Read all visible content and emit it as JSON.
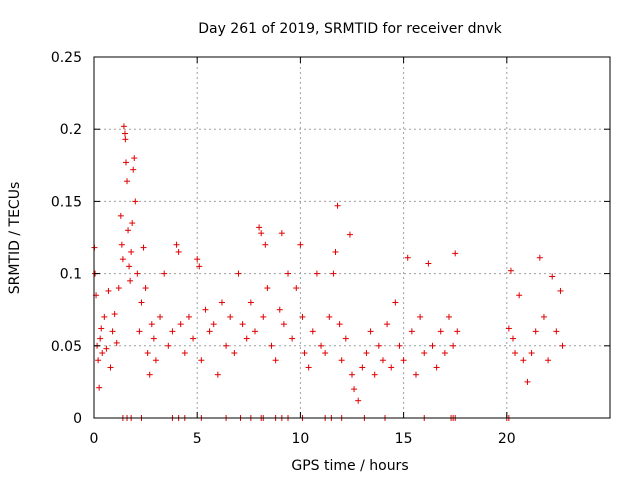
{
  "chart_data": {
    "type": "scatter",
    "title": "Day 261 of 2019, SRMTID for receiver dnvk",
    "xlabel": "GPS time / hours",
    "ylabel": "SRMTID / TECUs",
    "xlim": [
      0,
      25
    ],
    "ylim": [
      0,
      0.25
    ],
    "xticks": [
      0,
      5,
      10,
      15,
      20
    ],
    "xtick_labels": [
      "0",
      "5",
      "10",
      "15",
      "20"
    ],
    "yticks": [
      0,
      0.05,
      0.1,
      0.15,
      0.2,
      0.25
    ],
    "ytick_labels": [
      "0",
      "0.05",
      "0.1",
      "0.15",
      "0.2",
      "0.25"
    ],
    "grid": true,
    "marker": "+",
    "color": "#e00000",
    "series": [
      {
        "name": "SRMTID",
        "points": [
          [
            0.02,
            0.118
          ],
          [
            0.05,
            0.1
          ],
          [
            0.1,
            0.085
          ],
          [
            0.15,
            0.05
          ],
          [
            0.2,
            0.04
          ],
          [
            0.25,
            0.021
          ],
          [
            0.3,
            0.055
          ],
          [
            0.35,
            0.062
          ],
          [
            0.4,
            0.045
          ],
          [
            0.5,
            0.07
          ],
          [
            0.6,
            0.048
          ],
          [
            0.7,
            0.088
          ],
          [
            0.8,
            0.035
          ],
          [
            0.9,
            0.06
          ],
          [
            1.0,
            0.072
          ],
          [
            1.1,
            0.052
          ],
          [
            1.2,
            0.09
          ],
          [
            1.3,
            0.14
          ],
          [
            1.35,
            0.12
          ],
          [
            1.4,
            0.11
          ],
          [
            1.45,
            0.202
          ],
          [
            1.5,
            0.197
          ],
          [
            1.52,
            0.193
          ],
          [
            1.55,
            0.177
          ],
          [
            1.6,
            0.164
          ],
          [
            1.65,
            0.13
          ],
          [
            1.7,
            0.105
          ],
          [
            1.75,
            0.095
          ],
          [
            1.8,
            0.115
          ],
          [
            1.85,
            0.135
          ],
          [
            1.9,
            0.172
          ],
          [
            1.95,
            0.18
          ],
          [
            2.0,
            0.15
          ],
          [
            2.1,
            0.1
          ],
          [
            2.2,
            0.06
          ],
          [
            2.3,
            0.08
          ],
          [
            2.4,
            0.118
          ],
          [
            2.5,
            0.09
          ],
          [
            2.6,
            0.045
          ],
          [
            2.7,
            0.03
          ],
          [
            2.8,
            0.065
          ],
          [
            2.9,
            0.055
          ],
          [
            3.0,
            0.04
          ],
          [
            3.2,
            0.07
          ],
          [
            3.4,
            0.1
          ],
          [
            3.6,
            0.05
          ],
          [
            3.8,
            0.06
          ],
          [
            4.0,
            0.12
          ],
          [
            4.1,
            0.115
          ],
          [
            4.2,
            0.065
          ],
          [
            4.4,
            0.045
          ],
          [
            4.6,
            0.07
          ],
          [
            4.8,
            0.055
          ],
          [
            5.0,
            0.11
          ],
          [
            5.1,
            0.105
          ],
          [
            5.2,
            0.04
          ],
          [
            5.4,
            0.075
          ],
          [
            5.6,
            0.06
          ],
          [
            5.8,
            0.065
          ],
          [
            6.0,
            0.03
          ],
          [
            6.2,
            0.08
          ],
          [
            6.4,
            0.05
          ],
          [
            6.6,
            0.07
          ],
          [
            6.8,
            0.045
          ],
          [
            7.0,
            0.1
          ],
          [
            7.2,
            0.065
          ],
          [
            7.4,
            0.055
          ],
          [
            7.6,
            0.08
          ],
          [
            7.8,
            0.06
          ],
          [
            8.0,
            0.132
          ],
          [
            8.1,
            0.128
          ],
          [
            8.2,
            0.07
          ],
          [
            8.3,
            0.12
          ],
          [
            8.4,
            0.09
          ],
          [
            8.6,
            0.05
          ],
          [
            8.8,
            0.04
          ],
          [
            9.0,
            0.075
          ],
          [
            9.1,
            0.128
          ],
          [
            9.2,
            0.065
          ],
          [
            9.4,
            0.1
          ],
          [
            9.6,
            0.055
          ],
          [
            9.8,
            0.09
          ],
          [
            10.0,
            0.12
          ],
          [
            10.1,
            0.07
          ],
          [
            10.2,
            0.045
          ],
          [
            10.4,
            0.035
          ],
          [
            10.6,
            0.06
          ],
          [
            10.8,
            0.1
          ],
          [
            11.0,
            0.05
          ],
          [
            11.2,
            0.045
          ],
          [
            11.4,
            0.07
          ],
          [
            11.6,
            0.1
          ],
          [
            11.7,
            0.115
          ],
          [
            11.8,
            0.147
          ],
          [
            11.9,
            0.065
          ],
          [
            12.0,
            0.04
          ],
          [
            12.2,
            0.055
          ],
          [
            12.4,
            0.127
          ],
          [
            12.5,
            0.03
          ],
          [
            12.6,
            0.02
          ],
          [
            12.8,
            0.012
          ],
          [
            13.0,
            0.035
          ],
          [
            13.2,
            0.045
          ],
          [
            13.4,
            0.06
          ],
          [
            13.6,
            0.03
          ],
          [
            13.8,
            0.05
          ],
          [
            14.0,
            0.04
          ],
          [
            14.2,
            0.065
          ],
          [
            14.4,
            0.035
          ],
          [
            14.6,
            0.08
          ],
          [
            14.8,
            0.05
          ],
          [
            15.0,
            0.04
          ],
          [
            15.2,
            0.111
          ],
          [
            15.4,
            0.06
          ],
          [
            15.6,
            0.03
          ],
          [
            15.8,
            0.07
          ],
          [
            16.0,
            0.045
          ],
          [
            16.2,
            0.107
          ],
          [
            16.4,
            0.05
          ],
          [
            16.6,
            0.035
          ],
          [
            16.8,
            0.06
          ],
          [
            17.0,
            0.045
          ],
          [
            17.2,
            0.07
          ],
          [
            17.4,
            0.05
          ],
          [
            17.5,
            0.114
          ],
          [
            17.6,
            0.06
          ],
          [
            20.1,
            0.062
          ],
          [
            20.2,
            0.102
          ],
          [
            20.3,
            0.055
          ],
          [
            20.4,
            0.045
          ],
          [
            20.6,
            0.085
          ],
          [
            20.8,
            0.04
          ],
          [
            21.0,
            0.025
          ],
          [
            21.2,
            0.045
          ],
          [
            21.4,
            0.06
          ],
          [
            21.6,
            0.111
          ],
          [
            21.8,
            0.07
          ],
          [
            22.0,
            0.04
          ],
          [
            22.2,
            0.098
          ],
          [
            22.4,
            0.06
          ],
          [
            22.6,
            0.088
          ],
          [
            22.7,
            0.05
          ]
        ]
      }
    ],
    "zero_points_x": [
      1.4,
      1.6,
      1.8,
      2.3,
      3.8,
      4.1,
      4.4,
      5.2,
      6.4,
      7.1,
      7.6,
      8.1,
      8.2,
      8.8,
      9.1,
      9.4,
      10.1,
      11.2,
      11.5,
      12.0,
      13.1,
      14.1,
      16.0,
      17.3,
      17.4,
      17.5,
      20.0,
      20.1
    ]
  }
}
